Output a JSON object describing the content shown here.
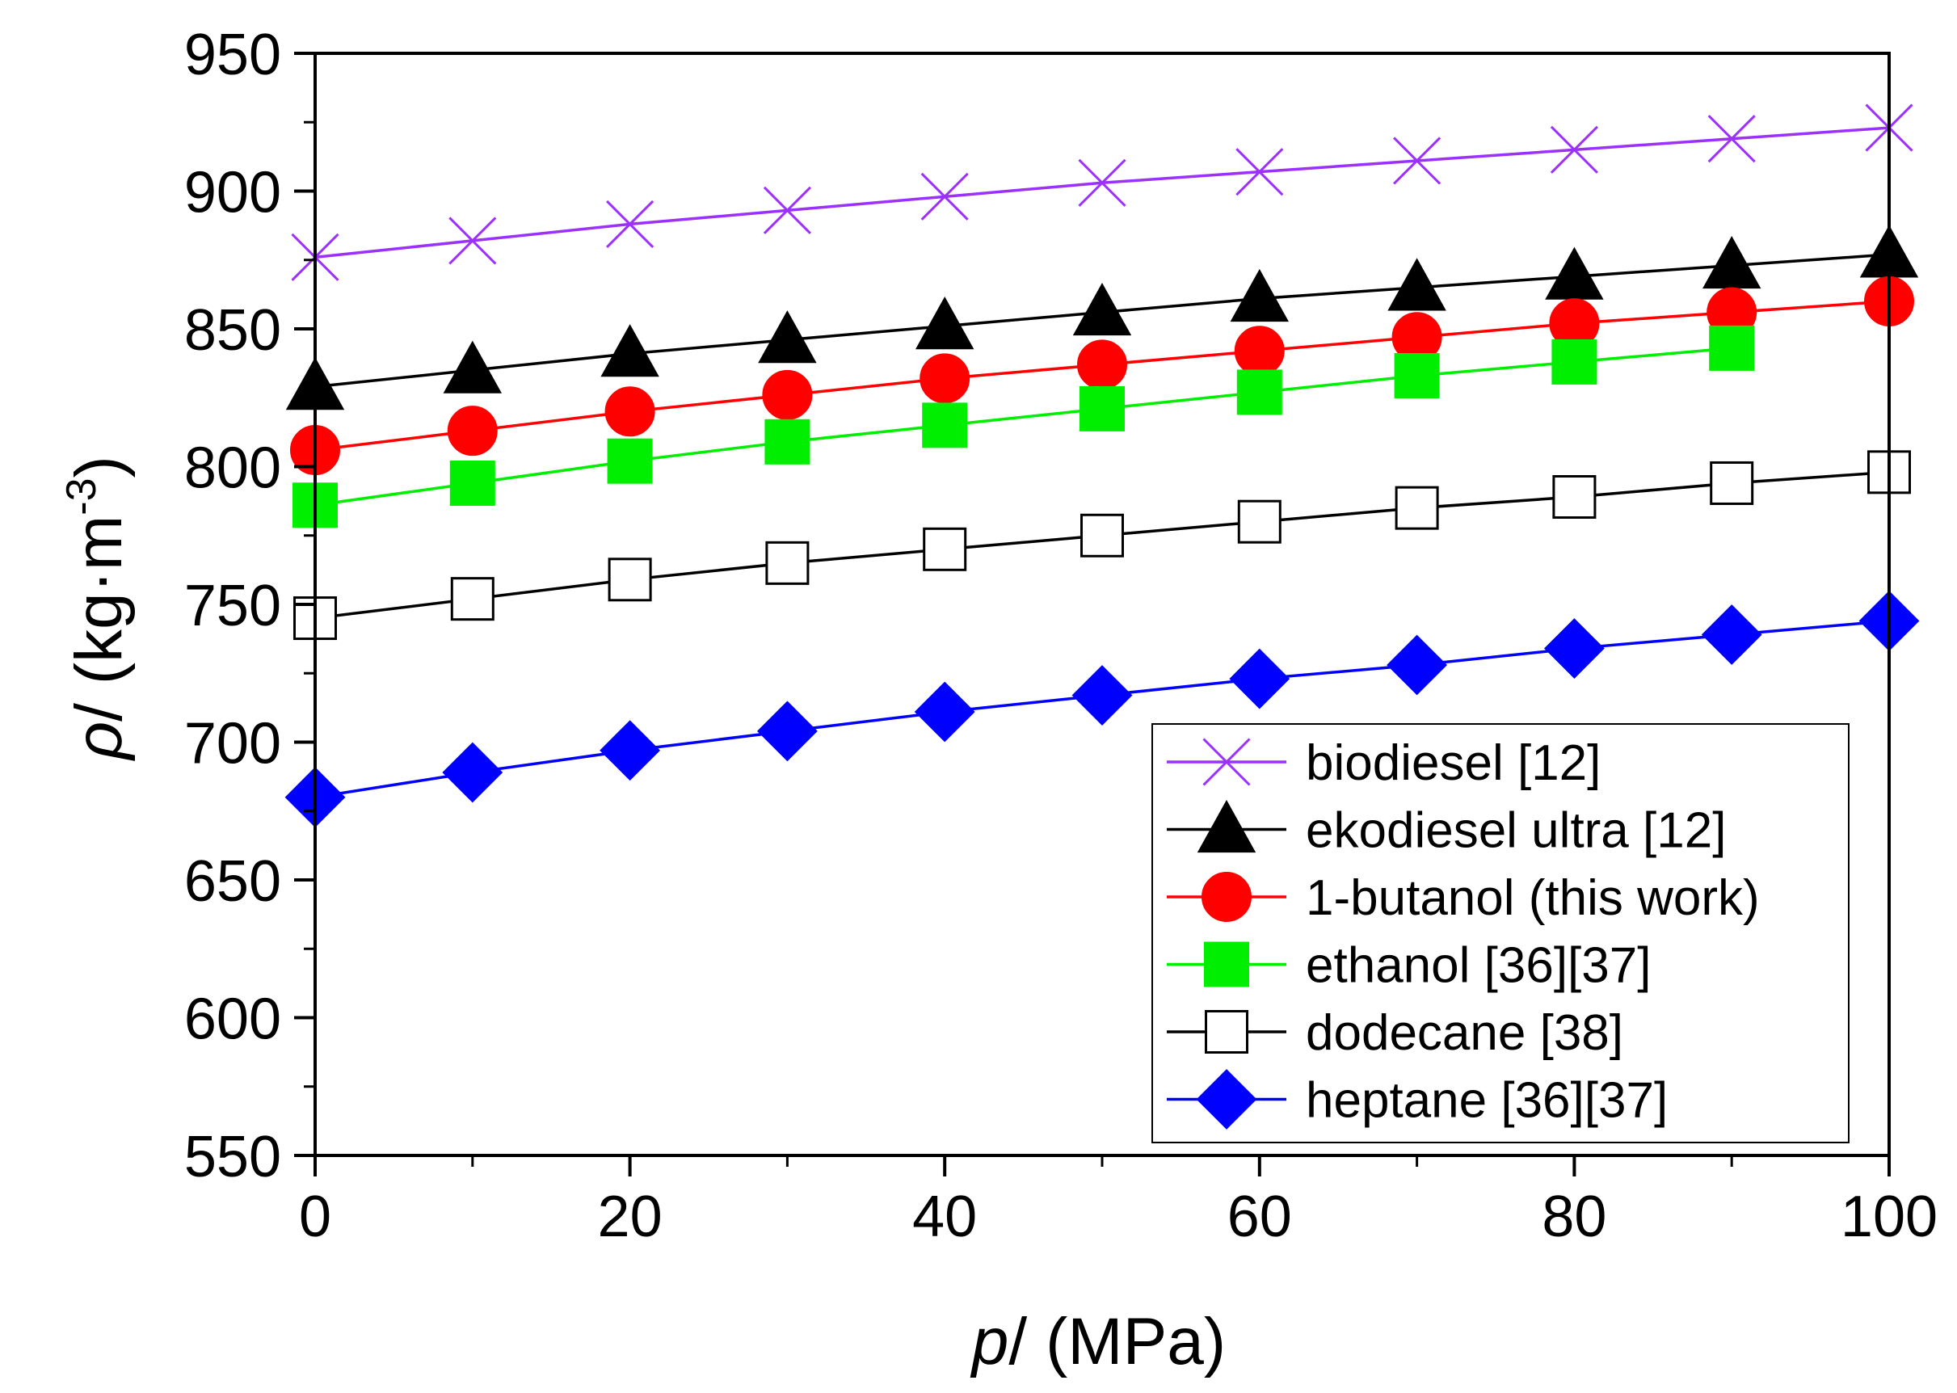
{
  "chart_data": {
    "type": "line",
    "title": "",
    "xlabel": {
      "var": "p",
      "unit": "/ (MPa)"
    },
    "ylabel": {
      "var": "ρ",
      "unit": "/ (kg·m",
      "sup": "-3",
      "close": ")"
    },
    "xlim": [
      0,
      100
    ],
    "ylim": [
      550,
      950
    ],
    "xticks": [
      0,
      20,
      40,
      60,
      80,
      100
    ],
    "yticks": [
      550,
      600,
      650,
      700,
      750,
      800,
      850,
      900,
      950
    ],
    "x_minor_step": 10,
    "y_minor_step": 25,
    "grid": false,
    "legend_position": "bottom-right",
    "series": [
      {
        "name": "biodiesel [12]",
        "marker": "x",
        "color": "#9b30ff",
        "fill": "none",
        "x": [
          0,
          10,
          20,
          30,
          40,
          50,
          60,
          70,
          80,
          90,
          100
        ],
        "values": [
          876,
          882,
          888,
          893,
          898,
          903,
          907,
          911,
          915,
          919,
          923
        ]
      },
      {
        "name": "ekodiesel ultra [12]",
        "marker": "triangle",
        "color": "#000000",
        "fill": "#000000",
        "x": [
          0,
          10,
          20,
          30,
          40,
          50,
          60,
          70,
          80,
          90,
          100
        ],
        "values": [
          829,
          835,
          841,
          846,
          851,
          856,
          861,
          865,
          869,
          873,
          877
        ]
      },
      {
        "name": "1-butanol (this work)",
        "marker": "circle",
        "color": "#ff0000",
        "fill": "#ff0000",
        "x": [
          0,
          10,
          20,
          30,
          40,
          50,
          60,
          70,
          80,
          90,
          100
        ],
        "values": [
          806,
          813,
          820,
          826,
          832,
          837,
          842,
          847,
          852,
          856,
          860
        ]
      },
      {
        "name": "ethanol [36][37]",
        "marker": "square",
        "color": "#00ee00",
        "fill": "#00ee00",
        "x": [
          0,
          10,
          20,
          30,
          40,
          50,
          60,
          70,
          80,
          90
        ],
        "values": [
          786,
          794,
          802,
          809,
          815,
          821,
          827,
          833,
          838,
          843
        ]
      },
      {
        "name": "dodecane [38]",
        "marker": "square-open",
        "color": "#000000",
        "fill": "#ffffff",
        "x": [
          0,
          10,
          20,
          30,
          40,
          50,
          60,
          70,
          80,
          90,
          100
        ],
        "values": [
          745,
          752,
          759,
          765,
          770,
          775,
          780,
          785,
          789,
          794,
          798
        ]
      },
      {
        "name": "heptane [36][37]",
        "marker": "diamond",
        "color": "#0000ff",
        "fill": "#0000ff",
        "x": [
          0,
          10,
          20,
          30,
          40,
          50,
          60,
          70,
          80,
          90,
          100
        ],
        "values": [
          680,
          689,
          697,
          704,
          711,
          717,
          723,
          728,
          734,
          739,
          744
        ]
      }
    ]
  }
}
